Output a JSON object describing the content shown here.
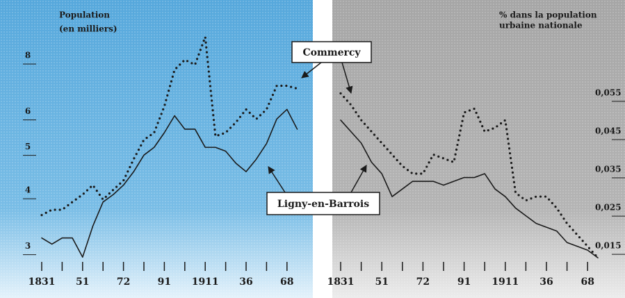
{
  "chart_data": [
    {
      "type": "line",
      "ylabel": [
        "Population",
        "(en milliers)"
      ],
      "categories": [
        "1831",
        null,
        null,
        null,
        "51",
        null,
        null,
        null,
        "72",
        null,
        null,
        null,
        "91",
        null,
        null,
        null,
        "1911",
        null,
        null,
        null,
        "36",
        null,
        null,
        null,
        "68",
        null
      ],
      "log_scale": true,
      "ylim": [
        2.85,
        10.5
      ],
      "yticks": [
        3,
        4,
        5,
        6,
        8
      ],
      "series": [
        {
          "name": "Commercy",
          "color": "#1a1a1a",
          "dash": "dotted",
          "values": [
            3.6,
            3.7,
            3.7,
            3.85,
            4.0,
            4.2,
            3.9,
            4.1,
            4.3,
            4.8,
            5.3,
            5.5,
            6.3,
            7.6,
            8.0,
            7.8,
            9.0,
            5.4,
            5.5,
            5.8,
            6.2,
            5.9,
            6.2,
            7.0,
            7.0,
            6.9
          ]
        },
        {
          "name": "Ligny-en-Barrois",
          "color": "#1a1a1a",
          "dash": "solid",
          "values": [
            3.2,
            3.1,
            3.2,
            3.2,
            2.9,
            3.4,
            3.85,
            4.0,
            4.2,
            4.5,
            4.9,
            5.1,
            5.5,
            6.0,
            5.6,
            5.6,
            5.1,
            5.1,
            5.0,
            4.7,
            4.5,
            4.8,
            5.2,
            5.9,
            6.2,
            5.6
          ]
        }
      ]
    },
    {
      "type": "line",
      "ylabel": [
        "% dans la population",
        "urbaine nationale"
      ],
      "categories": [
        "1831",
        null,
        null,
        null,
        "51",
        null,
        null,
        null,
        "72",
        null,
        null,
        null,
        "91",
        null,
        null,
        null,
        "1911",
        null,
        null,
        null,
        "36",
        null,
        null,
        null,
        "68",
        null
      ],
      "log_scale": false,
      "ylim": [
        0.0123,
        0.0786
      ],
      "yticks": [
        {
          "value": 0.015,
          "label": "0,015"
        },
        {
          "value": 0.025,
          "label": "0,025"
        },
        {
          "value": 0.035,
          "label": "0,035"
        },
        {
          "value": 0.045,
          "label": "0,045"
        },
        {
          "value": 0.055,
          "label": "0,055"
        }
      ],
      "series": [
        {
          "color": "#1a1a1a",
          "dash": "dotted",
          "values": [
            0.056,
            0.053,
            0.049,
            0.046,
            0.043,
            0.04,
            0.037,
            0.035,
            0.035,
            0.04,
            0.039,
            0.038,
            0.051,
            0.052,
            0.046,
            0.047,
            0.049,
            0.03,
            0.028,
            0.029,
            0.029,
            0.026,
            0.022,
            0.019,
            0.016,
            0.013
          ]
        },
        {
          "color": "#1a1a1a",
          "dash": "solid",
          "values": [
            0.049,
            0.046,
            0.043,
            0.038,
            0.035,
            0.029,
            0.031,
            0.033,
            0.033,
            0.033,
            0.032,
            0.033,
            0.034,
            0.034,
            0.035,
            0.031,
            0.029,
            0.026,
            0.024,
            0.022,
            0.021,
            0.02,
            0.017,
            0.016,
            0.015,
            0.013
          ]
        }
      ]
    }
  ]
}
